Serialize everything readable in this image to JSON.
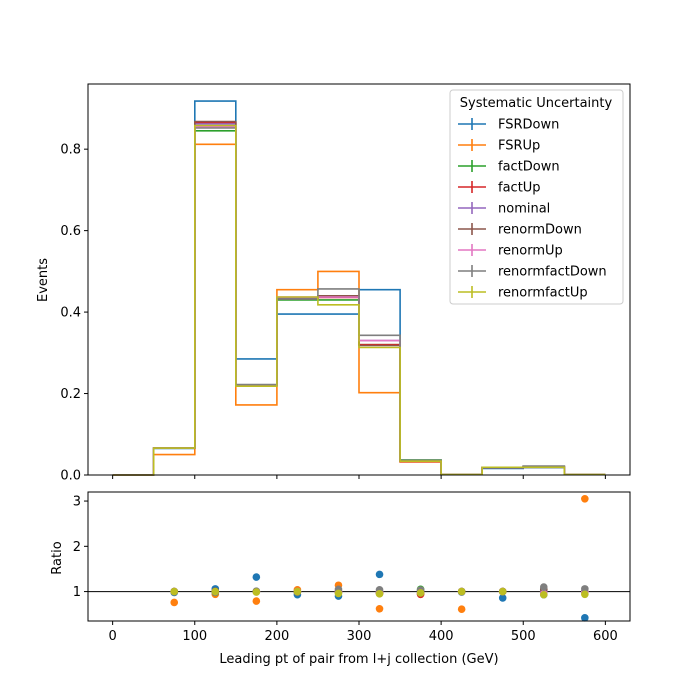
{
  "chart_data": {
    "type": "line",
    "drawstyle": "steps",
    "x_bin_edges": [
      0,
      50,
      100,
      150,
      200,
      250,
      300,
      350,
      400,
      450,
      500,
      550,
      600
    ],
    "x_ticks": [
      0,
      100,
      200,
      300,
      400,
      500,
      600
    ],
    "xlabel": "Leading pt of pair from l+j collection (GeV)",
    "xlim": [
      -30,
      630
    ],
    "top_panel": {
      "ylabel": "Events",
      "ylim": [
        0,
        0.96
      ],
      "y_ticks": [
        0.0,
        0.2,
        0.4,
        0.6,
        0.8
      ],
      "y_tick_labels": [
        "0.0",
        "0.2",
        "0.4",
        "0.6",
        "0.8"
      ],
      "grid": false
    },
    "bottom_panel": {
      "ylabel": "Ratio",
      "ylim": [
        0.35,
        3.2
      ],
      "y_ticks": [
        1,
        2,
        3
      ],
      "y_tick_labels": [
        "1",
        "2",
        "3"
      ],
      "reference_line": 1,
      "grid": false
    },
    "legend": {
      "title": "Systematic Uncertainty",
      "placement": "top-right"
    },
    "series": [
      {
        "name": "FSRDown",
        "color": "#1f77b4",
        "values": [
          0,
          0.065,
          0.918,
          0.285,
          0.395,
          0.395,
          0.455,
          0.035,
          0.001,
          0.016,
          0.018,
          0.001
        ],
        "ratio": [
          null,
          0.98,
          1.06,
          1.32,
          0.93,
          0.9,
          1.38,
          1.03,
          0.99,
          0.86,
          0.93,
          0.42
        ]
      },
      {
        "name": "FSRUp",
        "color": "#ff7f0e",
        "values": [
          0,
          0.05,
          0.812,
          0.172,
          0.455,
          0.5,
          0.202,
          0.032,
          0.001,
          0.019,
          0.02,
          0.001
        ],
        "ratio": [
          null,
          0.76,
          0.94,
          0.79,
          1.04,
          1.14,
          0.62,
          0.94,
          0.61,
          1.0,
          1.0,
          3.05
        ]
      },
      {
        "name": "factDown",
        "color": "#2ca02c",
        "values": [
          0,
          0.066,
          0.845,
          0.22,
          0.43,
          0.43,
          0.32,
          0.037,
          0.001,
          0.019,
          0.021,
          0.001
        ],
        "ratio": [
          null,
          1.0,
          0.98,
          1.0,
          0.99,
          0.98,
          0.97,
          1.05,
          1.0,
          1.0,
          1.04,
          1.0
        ]
      },
      {
        "name": "factUp",
        "color": "#d62728",
        "values": [
          0,
          0.066,
          0.865,
          0.22,
          0.433,
          0.436,
          0.32,
          0.033,
          0.001,
          0.018,
          0.02,
          0.001
        ],
        "ratio": [
          null,
          1.0,
          1.0,
          1.0,
          1.0,
          1.0,
          0.97,
          0.94,
          1.0,
          1.0,
          0.98,
          1.0
        ]
      },
      {
        "name": "nominal",
        "color": "#9467bd",
        "values": [
          0,
          0.066,
          0.862,
          0.22,
          0.435,
          0.437,
          0.33,
          0.035,
          0.001,
          0.019,
          0.02,
          0.001
        ],
        "ratio": [
          null,
          1.0,
          1.0,
          1.0,
          1.0,
          1.0,
          1.0,
          1.0,
          1.0,
          1.0,
          1.0,
          1.0
        ]
      },
      {
        "name": "renormDown",
        "color": "#8c564b",
        "values": [
          0,
          0.066,
          0.868,
          0.22,
          0.432,
          0.44,
          0.318,
          0.034,
          0.001,
          0.019,
          0.021,
          0.001
        ],
        "ratio": [
          null,
          1.0,
          1.01,
          1.0,
          0.99,
          1.01,
          0.96,
          0.97,
          1.0,
          1.0,
          1.05,
          1.0
        ]
      },
      {
        "name": "renormUp",
        "color": "#e377c2",
        "values": [
          0,
          0.066,
          0.855,
          0.22,
          0.437,
          0.437,
          0.33,
          0.036,
          0.001,
          0.019,
          0.019,
          0.001
        ],
        "ratio": [
          null,
          1.0,
          0.99,
          1.0,
          1.0,
          1.0,
          1.0,
          1.03,
          1.0,
          1.0,
          0.95,
          1.0
        ]
      },
      {
        "name": "renormfactDown",
        "color": "#7f7f7f",
        "values": [
          0,
          0.066,
          0.852,
          0.222,
          0.432,
          0.457,
          0.343,
          0.036,
          0.001,
          0.019,
          0.022,
          0.001
        ],
        "ratio": [
          null,
          1.0,
          0.99,
          1.01,
          0.99,
          1.05,
          1.04,
          1.03,
          1.0,
          1.0,
          1.1,
          1.06
        ]
      },
      {
        "name": "renormfactUp",
        "color": "#bcbd22",
        "values": [
          0,
          0.066,
          0.858,
          0.218,
          0.437,
          0.418,
          0.313,
          0.034,
          0.001,
          0.019,
          0.019,
          0.001
        ],
        "ratio": [
          null,
          1.0,
          1.0,
          0.99,
          1.0,
          0.96,
          0.95,
          0.97,
          1.0,
          1.0,
          0.93,
          0.94
        ]
      }
    ]
  }
}
